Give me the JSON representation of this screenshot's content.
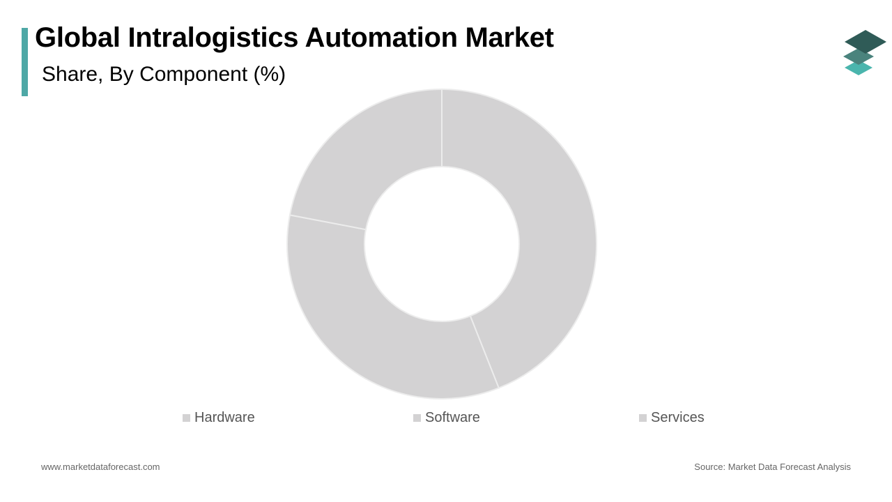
{
  "header": {
    "title": "Global Intralogistics Automation Market",
    "subtitle": "Share, By Component (%)"
  },
  "colors": {
    "accent": "#4ea8a6",
    "slice_fill": "#d3d2d3",
    "slice_stroke": "#ececec",
    "legend_swatch": "#d3d2d3",
    "logo_dark": "#2f5b57",
    "logo_mid": "#4a837d",
    "logo_light": "#4ab5ad"
  },
  "logo": {
    "icon": "stacked-layers-logo-icon"
  },
  "chart_data": {
    "type": "pie",
    "donut": true,
    "categories": [
      "Hardware",
      "Software",
      "Services"
    ],
    "values": [
      44,
      34,
      22
    ],
    "legend_position": "bottom"
  },
  "footer": {
    "website": "www.marketdataforecast.com",
    "source": "Source: Market Data Forecast Analysis"
  }
}
